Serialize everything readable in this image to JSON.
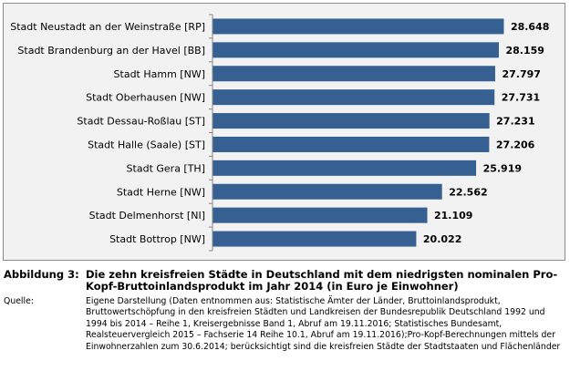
{
  "chart_data": {
    "type": "bar",
    "orientation": "horizontal",
    "categories": [
      "Stadt Neustadt an der Weinstraße [RP]",
      "Stadt Brandenburg an der Havel [BB]",
      "Stadt Hamm [NW]",
      "Stadt Oberhausen [NW]",
      "Stadt Dessau-Roßlau [ST]",
      "Stadt Halle (Saale) [ST]",
      "Stadt Gera [TH]",
      "Stadt Herne [NW]",
      "Stadt Delmenhorst [NI]",
      "Stadt Bottrop [NW]"
    ],
    "values": [
      28648,
      28159,
      27797,
      27731,
      27231,
      27206,
      25919,
      22562,
      21109,
      20022
    ],
    "value_labels": [
      "28.648",
      "28.159",
      "27.797",
      "27.731",
      "27.231",
      "27.206",
      "25.919",
      "22.562",
      "21.109",
      "20.022"
    ],
    "xlim": [
      0,
      30000
    ],
    "grid": false,
    "bar_color": "#376092",
    "background": "#f2f2f2"
  },
  "caption": {
    "figure_label": "Abbildung 3:",
    "figure_title": "Die zehn kreisfreien Städte in Deutschland mit dem niedrigsten nominalen Pro-Kopf-Bruttoinlandsprodukt im Jahr 2014 (in Euro je Einwohner)",
    "source_label": "Quelle:",
    "source_text": "Eigene Darstellung (Daten entnommen aus: Statistische Ämter der Länder, Bruttoinlandsprodukt, Bruttowertschöpfung in den kreisfreien Städten und Landkreisen der Bundesrepublik Deutschland 1992 und 1994 bis 2014 – Reihe 1, Kreisergebnisse Band 1, Abruf am 19.11.2016; Statistisches Bundesamt, Realsteuervergleich 2015 – Fachserie 14 Reihe 10.1, Abruf am 19.11.2016);Pro-Kopf-Berechnungen mittels der Einwohnerzahlen zum 30.6.2014; berücksichtigt sind die kreisfreien Städte der Stadtstaaten und Flächenländer"
  }
}
